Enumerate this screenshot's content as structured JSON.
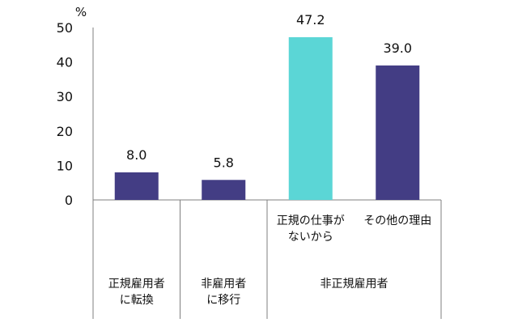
{
  "chart_data": {
    "type": "bar",
    "unit_label": "%",
    "ylim": [
      0,
      50
    ],
    "yticks": [
      0,
      10,
      20,
      30,
      40,
      50
    ],
    "categories": [
      {
        "lines": [
          "正規雇用者",
          "に転換"
        ],
        "value": 8.0,
        "value_label": "8.0",
        "color": "#433D84"
      },
      {
        "lines": [
          "非雇用者",
          "に移行"
        ],
        "value": 5.8,
        "value_label": "5.8",
        "color": "#433D84"
      },
      {
        "lines": [
          "正規の仕事が",
          "ないから"
        ],
        "value": 47.2,
        "value_label": "47.2",
        "color": "#5BD6D6"
      },
      {
        "lines": [
          "その他の理由"
        ],
        "value": 39.0,
        "value_label": "39.0",
        "color": "#433D84"
      }
    ],
    "group_labels": [
      {
        "text": "非正規雇用者",
        "span": [
          2,
          3
        ]
      }
    ],
    "grid": false,
    "legend": "none"
  }
}
